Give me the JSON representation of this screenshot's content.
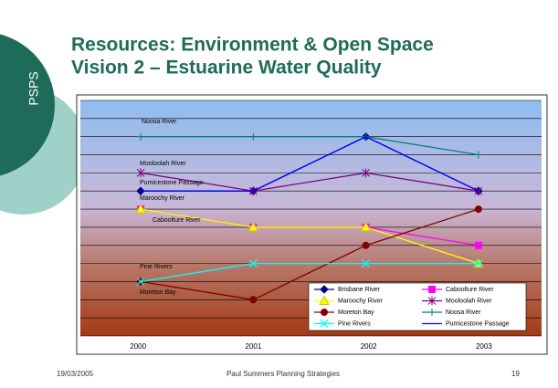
{
  "sidebar_label": "PSPS",
  "title": [
    "Resources: Environment & Open Space",
    "Vision 2 – Estuarine Water Quality"
  ],
  "footer": {
    "date": "19/03/2005",
    "author": "Paul Summers Planning Strategies",
    "page": "19"
  },
  "chart_data": {
    "type": "line",
    "categories": [
      "2000",
      "2001",
      "2002",
      "2003"
    ],
    "ylim": [
      0,
      13
    ],
    "yticks": [
      0,
      1,
      2,
      3,
      4,
      5,
      6,
      7,
      8,
      9,
      10,
      11,
      12,
      13
    ],
    "grid": true,
    "annotations": [
      "Noosa River",
      "Mooloolah River",
      "Pumicestone Passage",
      "Maroochy River",
      "Caboolture River",
      "Pine Rivers",
      "Moreton Bay"
    ],
    "legend": "bottom-right",
    "series": [
      {
        "name": "Brisbane River",
        "color": "#000080",
        "marker": "diamond",
        "values": [
          8,
          8,
          11,
          8
        ]
      },
      {
        "name": "Caboolture River",
        "color": "#ff00ff",
        "marker": "square",
        "values": [
          7,
          6,
          6,
          5
        ]
      },
      {
        "name": "Maroochy River",
        "color": "#ffff00",
        "marker": "triangle",
        "values": [
          7,
          6,
          6,
          4
        ]
      },
      {
        "name": "Mooloolah River",
        "color": "#800080",
        "marker": "star",
        "values": [
          9,
          8,
          9,
          8
        ]
      },
      {
        "name": "Moreton Bay",
        "color": "#800000",
        "marker": "circle",
        "values": [
          3,
          2,
          5,
          7
        ]
      },
      {
        "name": "Noosa River",
        "color": "#008080",
        "marker": "plus",
        "values": [
          11,
          11,
          11,
          10
        ]
      },
      {
        "name": "Pine Rivers",
        "color": "#00ffff",
        "marker": "x",
        "values": [
          3,
          4,
          4,
          4
        ]
      },
      {
        "name": "Pumicestone Passage",
        "color": "#0000ff",
        "marker": "none",
        "values": [
          8,
          8,
          11,
          8
        ]
      }
    ]
  }
}
